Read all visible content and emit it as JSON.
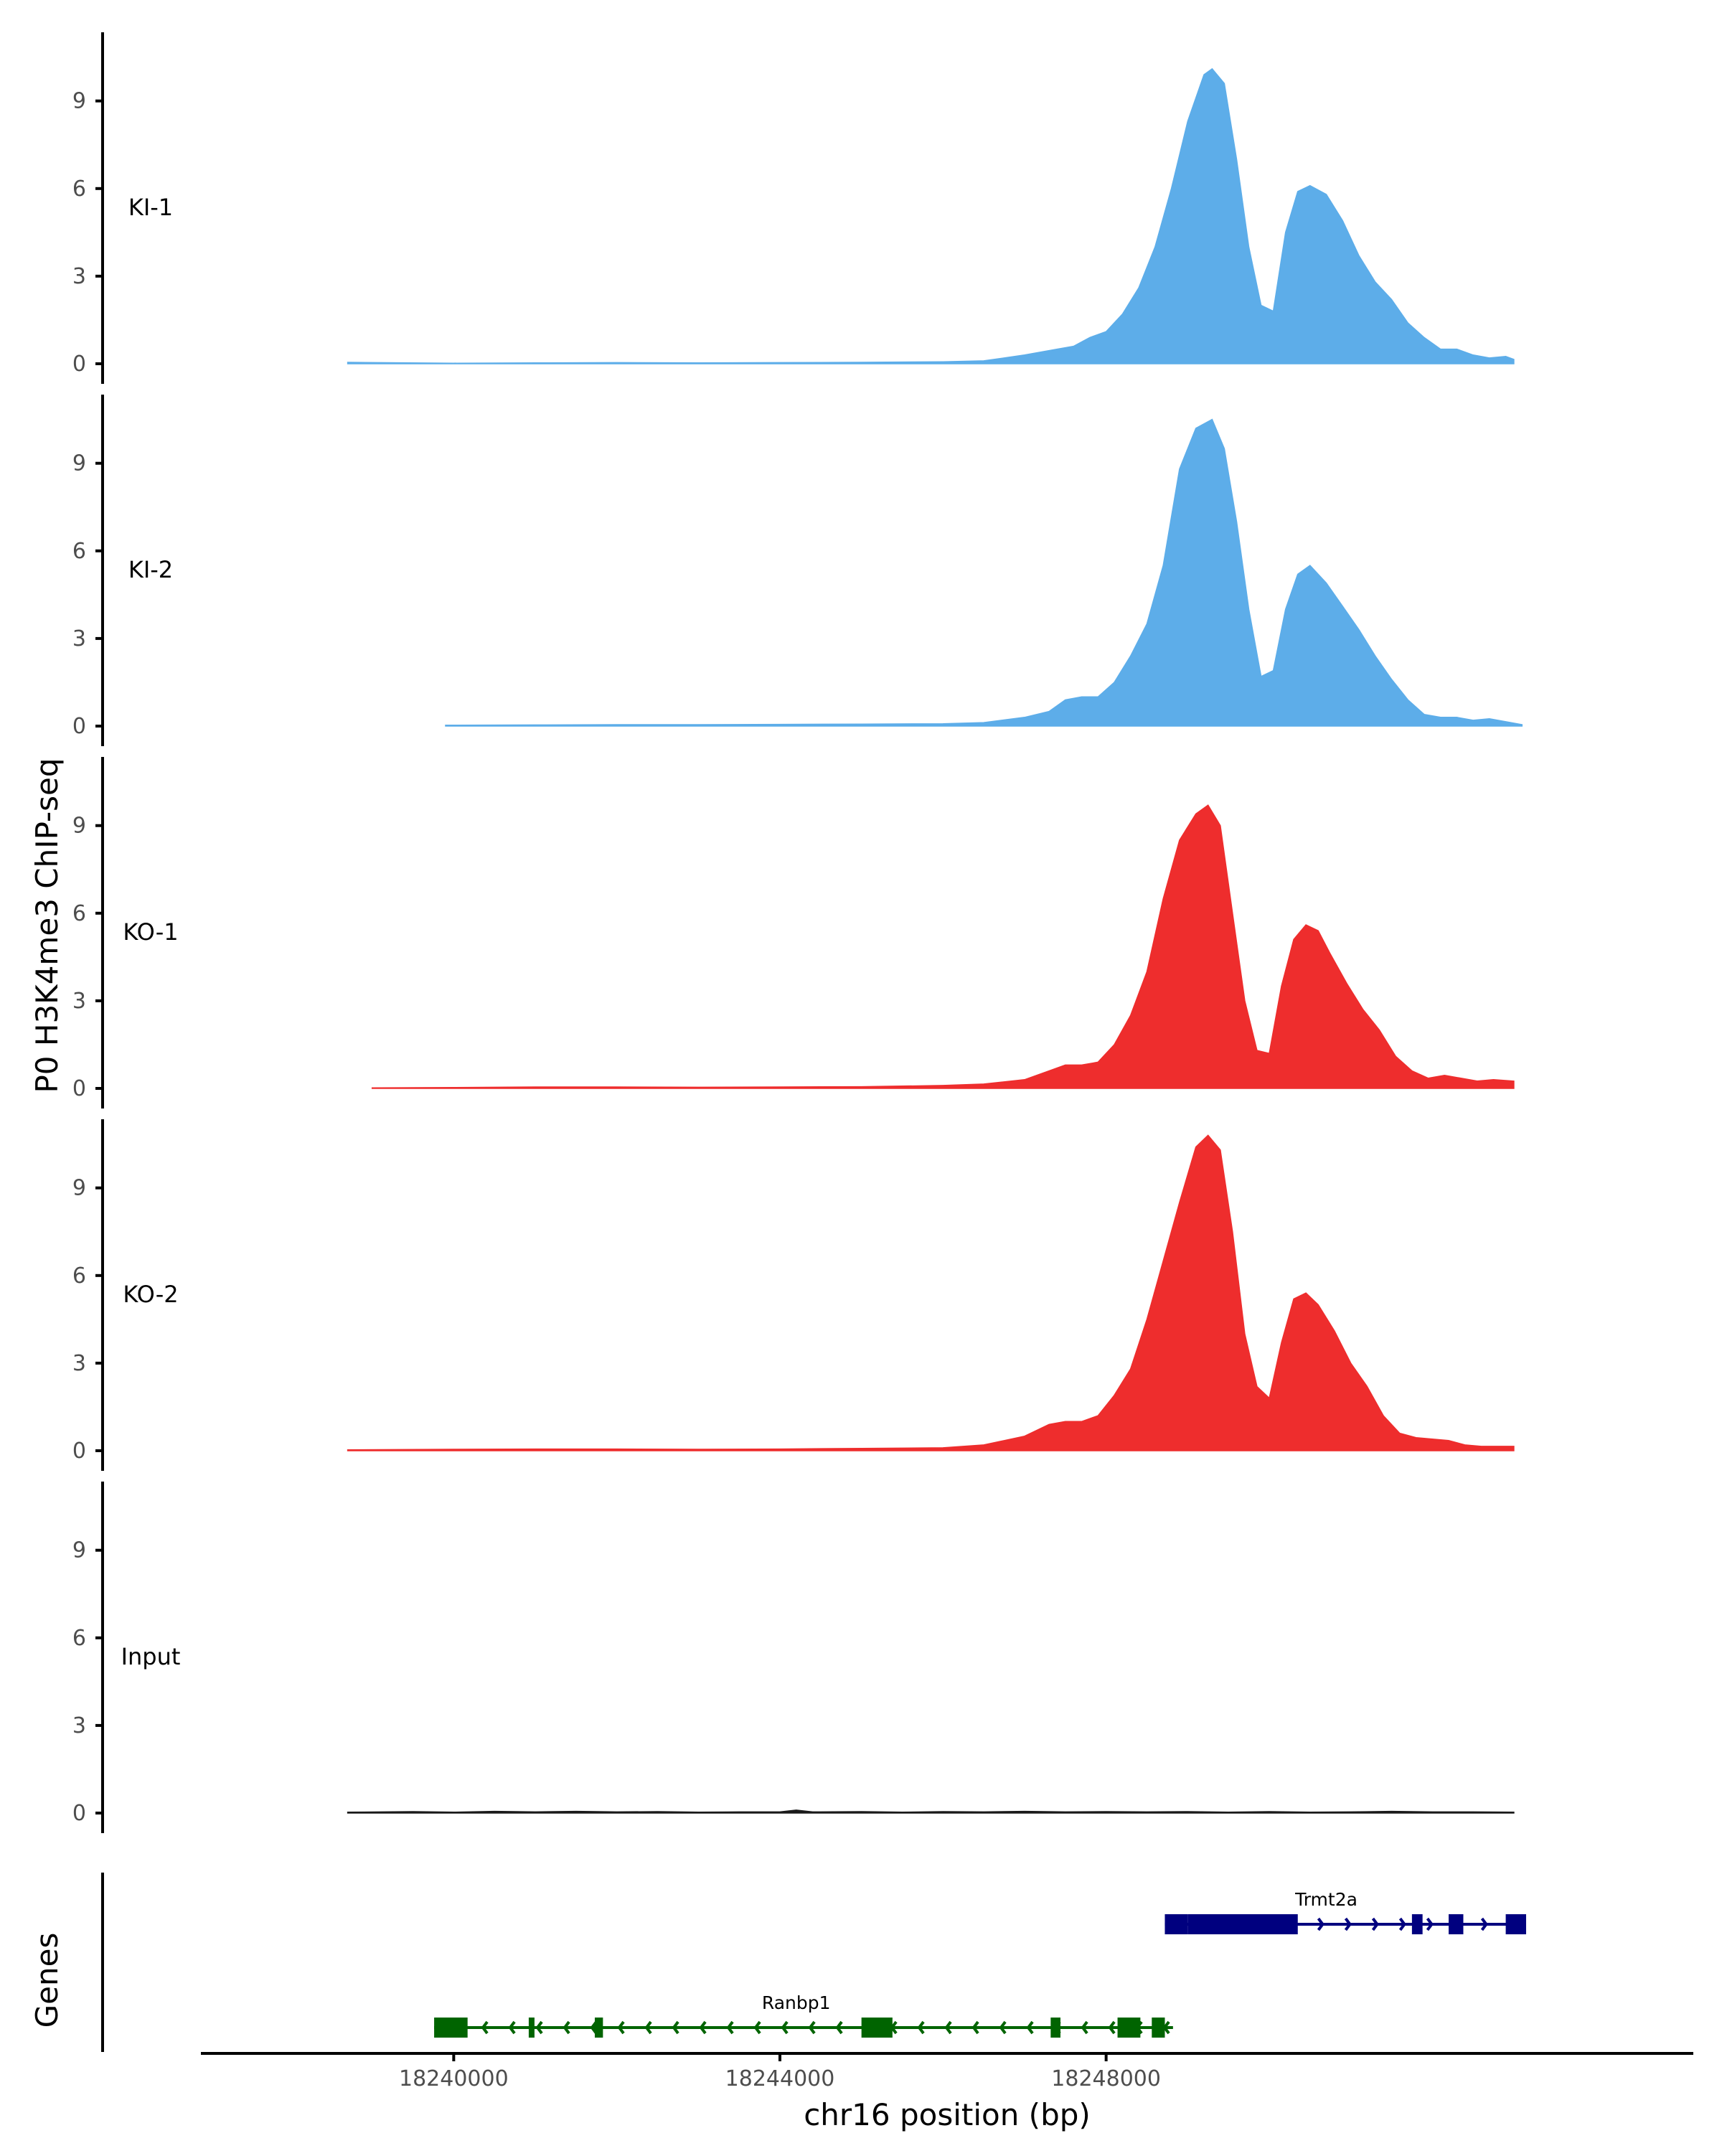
{
  "chart_data": {
    "type": "area",
    "ylabel": "P0 H3K4me3 ChIP-seq",
    "genes_label": "Genes",
    "xlabel": "chr16 position (bp)",
    "xlim": [
      18236900,
      18255200
    ],
    "ylim": [
      0,
      11.2
    ],
    "yticks": [
      "0",
      "3",
      "6",
      "9"
    ],
    "xticks": [
      {
        "value": 18240000,
        "label": "18240000"
      },
      {
        "value": 18244000,
        "label": "18244000"
      },
      {
        "value": 18248000,
        "label": "18248000"
      }
    ],
    "colors": {
      "KI": "#5dade9",
      "KO": "#ee2d2d",
      "Input": "#1a1a1a",
      "Trmt2a": "#00007f",
      "Ranbp1": "#006400"
    },
    "tracks": [
      {
        "name": "KI-1",
        "label": "KI-1",
        "color_key": "KI",
        "points": [
          [
            18238700,
            0.05
          ],
          [
            18240000,
            0.02
          ],
          [
            18241000,
            0.03
          ],
          [
            18242000,
            0.04
          ],
          [
            18243000,
            0.03
          ],
          [
            18244000,
            0.04
          ],
          [
            18245000,
            0.05
          ],
          [
            18246000,
            0.07
          ],
          [
            18246500,
            0.1
          ],
          [
            18247000,
            0.3
          ],
          [
            18247400,
            0.5
          ],
          [
            18247600,
            0.6
          ],
          [
            18247800,
            0.9
          ],
          [
            18248000,
            1.1
          ],
          [
            18248200,
            1.7
          ],
          [
            18248400,
            2.6
          ],
          [
            18248600,
            4.0
          ],
          [
            18248800,
            6.0
          ],
          [
            18249000,
            8.3
          ],
          [
            18249200,
            9.9
          ],
          [
            18249300,
            10.1
          ],
          [
            18249450,
            9.6
          ],
          [
            18249600,
            7.0
          ],
          [
            18249750,
            4.0
          ],
          [
            18249900,
            2.0
          ],
          [
            18250050,
            1.8
          ],
          [
            18250200,
            4.5
          ],
          [
            18250350,
            5.9
          ],
          [
            18250500,
            6.1
          ],
          [
            18250700,
            5.8
          ],
          [
            18250900,
            4.9
          ],
          [
            18251100,
            3.7
          ],
          [
            18251300,
            2.8
          ],
          [
            18251500,
            2.2
          ],
          [
            18251700,
            1.4
          ],
          [
            18251900,
            0.9
          ],
          [
            18252100,
            0.5
          ],
          [
            18252300,
            0.5
          ],
          [
            18252500,
            0.3
          ],
          [
            18252700,
            0.2
          ],
          [
            18252900,
            0.25
          ],
          [
            18253000,
            0.15
          ]
        ]
      },
      {
        "name": "KI-2",
        "label": "KI-2",
        "color_key": "KI",
        "points": [
          [
            18239900,
            0.03
          ],
          [
            18241000,
            0.04
          ],
          [
            18242000,
            0.05
          ],
          [
            18243000,
            0.05
          ],
          [
            18244000,
            0.06
          ],
          [
            18245000,
            0.07
          ],
          [
            18246000,
            0.08
          ],
          [
            18246500,
            0.12
          ],
          [
            18247000,
            0.3
          ],
          [
            18247300,
            0.5
          ],
          [
            18247500,
            0.9
          ],
          [
            18247700,
            1.0
          ],
          [
            18247900,
            1.0
          ],
          [
            18248100,
            1.5
          ],
          [
            18248300,
            2.4
          ],
          [
            18248500,
            3.5
          ],
          [
            18248700,
            5.5
          ],
          [
            18248900,
            8.8
          ],
          [
            18249100,
            10.2
          ],
          [
            18249300,
            10.5
          ],
          [
            18249450,
            9.5
          ],
          [
            18249600,
            7.0
          ],
          [
            18249750,
            4.0
          ],
          [
            18249900,
            1.7
          ],
          [
            18250050,
            1.9
          ],
          [
            18250200,
            4.0
          ],
          [
            18250350,
            5.2
          ],
          [
            18250500,
            5.5
          ],
          [
            18250700,
            4.9
          ],
          [
            18250900,
            4.1
          ],
          [
            18251100,
            3.3
          ],
          [
            18251300,
            2.4
          ],
          [
            18251500,
            1.6
          ],
          [
            18251700,
            0.9
          ],
          [
            18251900,
            0.4
          ],
          [
            18252100,
            0.3
          ],
          [
            18252300,
            0.3
          ],
          [
            18252500,
            0.2
          ],
          [
            18252700,
            0.25
          ],
          [
            18252900,
            0.15
          ],
          [
            18253100,
            0.05
          ]
        ]
      },
      {
        "name": "KO-1",
        "label": "KO-1",
        "color_key": "KO",
        "points": [
          [
            18239000,
            0.02
          ],
          [
            18240000,
            0.03
          ],
          [
            18241000,
            0.05
          ],
          [
            18242000,
            0.05
          ],
          [
            18243000,
            0.04
          ],
          [
            18244000,
            0.05
          ],
          [
            18245000,
            0.06
          ],
          [
            18246000,
            0.1
          ],
          [
            18246500,
            0.15
          ],
          [
            18247000,
            0.3
          ],
          [
            18247300,
            0.6
          ],
          [
            18247500,
            0.8
          ],
          [
            18247700,
            0.8
          ],
          [
            18247900,
            0.9
          ],
          [
            18248100,
            1.5
          ],
          [
            18248300,
            2.5
          ],
          [
            18248500,
            4.0
          ],
          [
            18248700,
            6.5
          ],
          [
            18248900,
            8.5
          ],
          [
            18249100,
            9.4
          ],
          [
            18249250,
            9.7
          ],
          [
            18249400,
            9.0
          ],
          [
            18249550,
            6.0
          ],
          [
            18249700,
            3.0
          ],
          [
            18249850,
            1.3
          ],
          [
            18250000,
            1.2
          ],
          [
            18250150,
            3.5
          ],
          [
            18250300,
            5.1
          ],
          [
            18250450,
            5.6
          ],
          [
            18250600,
            5.4
          ],
          [
            18250750,
            4.6
          ],
          [
            18250950,
            3.6
          ],
          [
            18251150,
            2.7
          ],
          [
            18251350,
            2.0
          ],
          [
            18251550,
            1.1
          ],
          [
            18251750,
            0.6
          ],
          [
            18251950,
            0.35
          ],
          [
            18252150,
            0.45
          ],
          [
            18252350,
            0.35
          ],
          [
            18252550,
            0.25
          ],
          [
            18252750,
            0.3
          ],
          [
            18253000,
            0.25
          ]
        ]
      },
      {
        "name": "KO-2",
        "label": "KO-2",
        "color_key": "KO",
        "points": [
          [
            18238700,
            0.03
          ],
          [
            18240000,
            0.05
          ],
          [
            18241000,
            0.06
          ],
          [
            18242000,
            0.06
          ],
          [
            18243000,
            0.05
          ],
          [
            18244000,
            0.06
          ],
          [
            18245000,
            0.08
          ],
          [
            18246000,
            0.1
          ],
          [
            18246500,
            0.2
          ],
          [
            18247000,
            0.5
          ],
          [
            18247300,
            0.9
          ],
          [
            18247500,
            1.0
          ],
          [
            18247700,
            1.0
          ],
          [
            18247900,
            1.2
          ],
          [
            18248100,
            1.9
          ],
          [
            18248300,
            2.8
          ],
          [
            18248500,
            4.5
          ],
          [
            18248700,
            6.5
          ],
          [
            18248900,
            8.5
          ],
          [
            18249100,
            10.4
          ],
          [
            18249250,
            10.8
          ],
          [
            18249400,
            10.3
          ],
          [
            18249550,
            7.5
          ],
          [
            18249700,
            4.0
          ],
          [
            18249850,
            2.2
          ],
          [
            18250000,
            1.8
          ],
          [
            18250150,
            3.7
          ],
          [
            18250300,
            5.2
          ],
          [
            18250450,
            5.4
          ],
          [
            18250600,
            5.0
          ],
          [
            18250800,
            4.1
          ],
          [
            18251000,
            3.0
          ],
          [
            18251200,
            2.2
          ],
          [
            18251400,
            1.2
          ],
          [
            18251600,
            0.6
          ],
          [
            18251800,
            0.45
          ],
          [
            18252000,
            0.4
          ],
          [
            18252200,
            0.35
          ],
          [
            18252400,
            0.2
          ],
          [
            18252600,
            0.15
          ],
          [
            18253000,
            0.15
          ]
        ]
      },
      {
        "name": "Input",
        "label": "Input",
        "color_key": "Input",
        "points": [
          [
            18238700,
            0.03
          ],
          [
            18239500,
            0.05
          ],
          [
            18240000,
            0.03
          ],
          [
            18240500,
            0.06
          ],
          [
            18241000,
            0.04
          ],
          [
            18241500,
            0.06
          ],
          [
            18242000,
            0.04
          ],
          [
            18242500,
            0.05
          ],
          [
            18243000,
            0.03
          ],
          [
            18243500,
            0.04
          ],
          [
            18244000,
            0.04
          ],
          [
            18244200,
            0.1
          ],
          [
            18244400,
            0.04
          ],
          [
            18245000,
            0.05
          ],
          [
            18245500,
            0.03
          ],
          [
            18246000,
            0.05
          ],
          [
            18246500,
            0.04
          ],
          [
            18247000,
            0.06
          ],
          [
            18247500,
            0.04
          ],
          [
            18248000,
            0.05
          ],
          [
            18248500,
            0.04
          ],
          [
            18249000,
            0.05
          ],
          [
            18249500,
            0.03
          ],
          [
            18250000,
            0.05
          ],
          [
            18250500,
            0.03
          ],
          [
            18251000,
            0.04
          ],
          [
            18251500,
            0.06
          ],
          [
            18252000,
            0.04
          ],
          [
            18252500,
            0.04
          ],
          [
            18253000,
            0.03
          ]
        ]
      }
    ],
    "genes": [
      {
        "name": "Trmt2a",
        "label": "Trmt2a",
        "strand": "+",
        "color_key": "Trmt2a",
        "row": 1,
        "start": 18248720,
        "end": 18253150,
        "label_pos": 18250700,
        "exons": [
          [
            18248720,
            18249000,
            "utr"
          ],
          [
            18249000,
            18250350,
            "cds"
          ],
          [
            18251750,
            18251880,
            "cds"
          ],
          [
            18252200,
            18252380,
            "cds"
          ],
          [
            18252900,
            18253150,
            "utr"
          ]
        ]
      },
      {
        "name": "Ranbp1",
        "label": "Ranbp1",
        "strand": "-",
        "color_key": "Ranbp1",
        "row": 2,
        "start": 18239760,
        "end": 18248820,
        "label_pos": 18244200,
        "exons": [
          [
            18239760,
            18240170,
            "cds"
          ],
          [
            18240920,
            18240990,
            "cds"
          ],
          [
            18241730,
            18241830,
            "cds"
          ],
          [
            18245000,
            18245380,
            "cds"
          ],
          [
            18247320,
            18247440,
            "cds"
          ],
          [
            18248140,
            18248420,
            "cds"
          ],
          [
            18248560,
            18248720,
            "cds"
          ]
        ]
      }
    ]
  }
}
